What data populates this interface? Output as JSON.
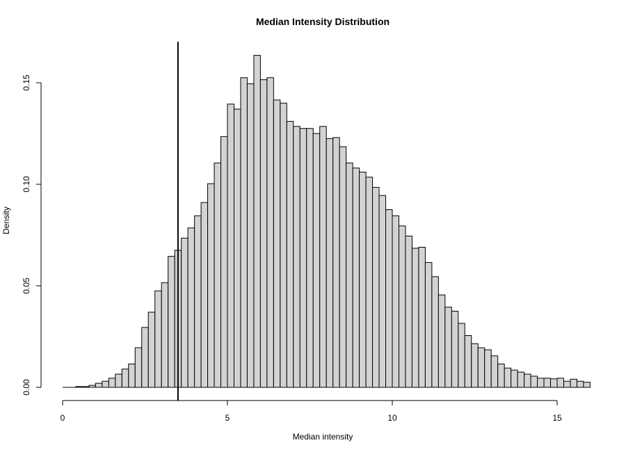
{
  "chart_data": {
    "type": "bar",
    "title": "Median Intensity Distribution",
    "xlabel": "Median intensity",
    "ylabel": "Density",
    "xlim": [
      0,
      15.8
    ],
    "ylim": [
      0,
      0.17
    ],
    "x_ticks": [
      0,
      5,
      10,
      15
    ],
    "y_ticks": [
      0.0,
      0.05,
      0.1,
      0.15
    ],
    "y_tick_labels": [
      "0.00",
      "0.05",
      "0.10",
      "0.15"
    ],
    "bin_width": 0.2,
    "bin_start": 0.4,
    "values": [
      0.0004,
      0.0004,
      0.001,
      0.002,
      0.003,
      0.0045,
      0.0065,
      0.009,
      0.0115,
      0.0195,
      0.0295,
      0.037,
      0.0475,
      0.0515,
      0.0645,
      0.0675,
      0.0735,
      0.0785,
      0.0845,
      0.091,
      0.1003,
      0.1105,
      0.1235,
      0.1395,
      0.137,
      0.1525,
      0.1495,
      0.1635,
      0.1515,
      0.1525,
      0.1415,
      0.14,
      0.131,
      0.1285,
      0.1275,
      0.1275,
      0.125,
      0.1285,
      0.1225,
      0.123,
      0.1185,
      0.1105,
      0.108,
      0.106,
      0.1035,
      0.0985,
      0.0945,
      0.0875,
      0.0845,
      0.0795,
      0.0745,
      0.0685,
      0.069,
      0.0615,
      0.0545,
      0.0455,
      0.0395,
      0.0375,
      0.0315,
      0.0255,
      0.0215,
      0.0195,
      0.0185,
      0.0155,
      0.0115,
      0.0095,
      0.0085,
      0.0075,
      0.0065,
      0.0055,
      0.0045,
      0.0045,
      0.0042,
      0.0045,
      0.003,
      0.004,
      0.003,
      0.0025
    ],
    "vline_x": 3.5,
    "bar_fill": "#d3d3d3",
    "bar_stroke": "#000000",
    "vline_color": "#000000",
    "grid": false,
    "legend": "none"
  }
}
